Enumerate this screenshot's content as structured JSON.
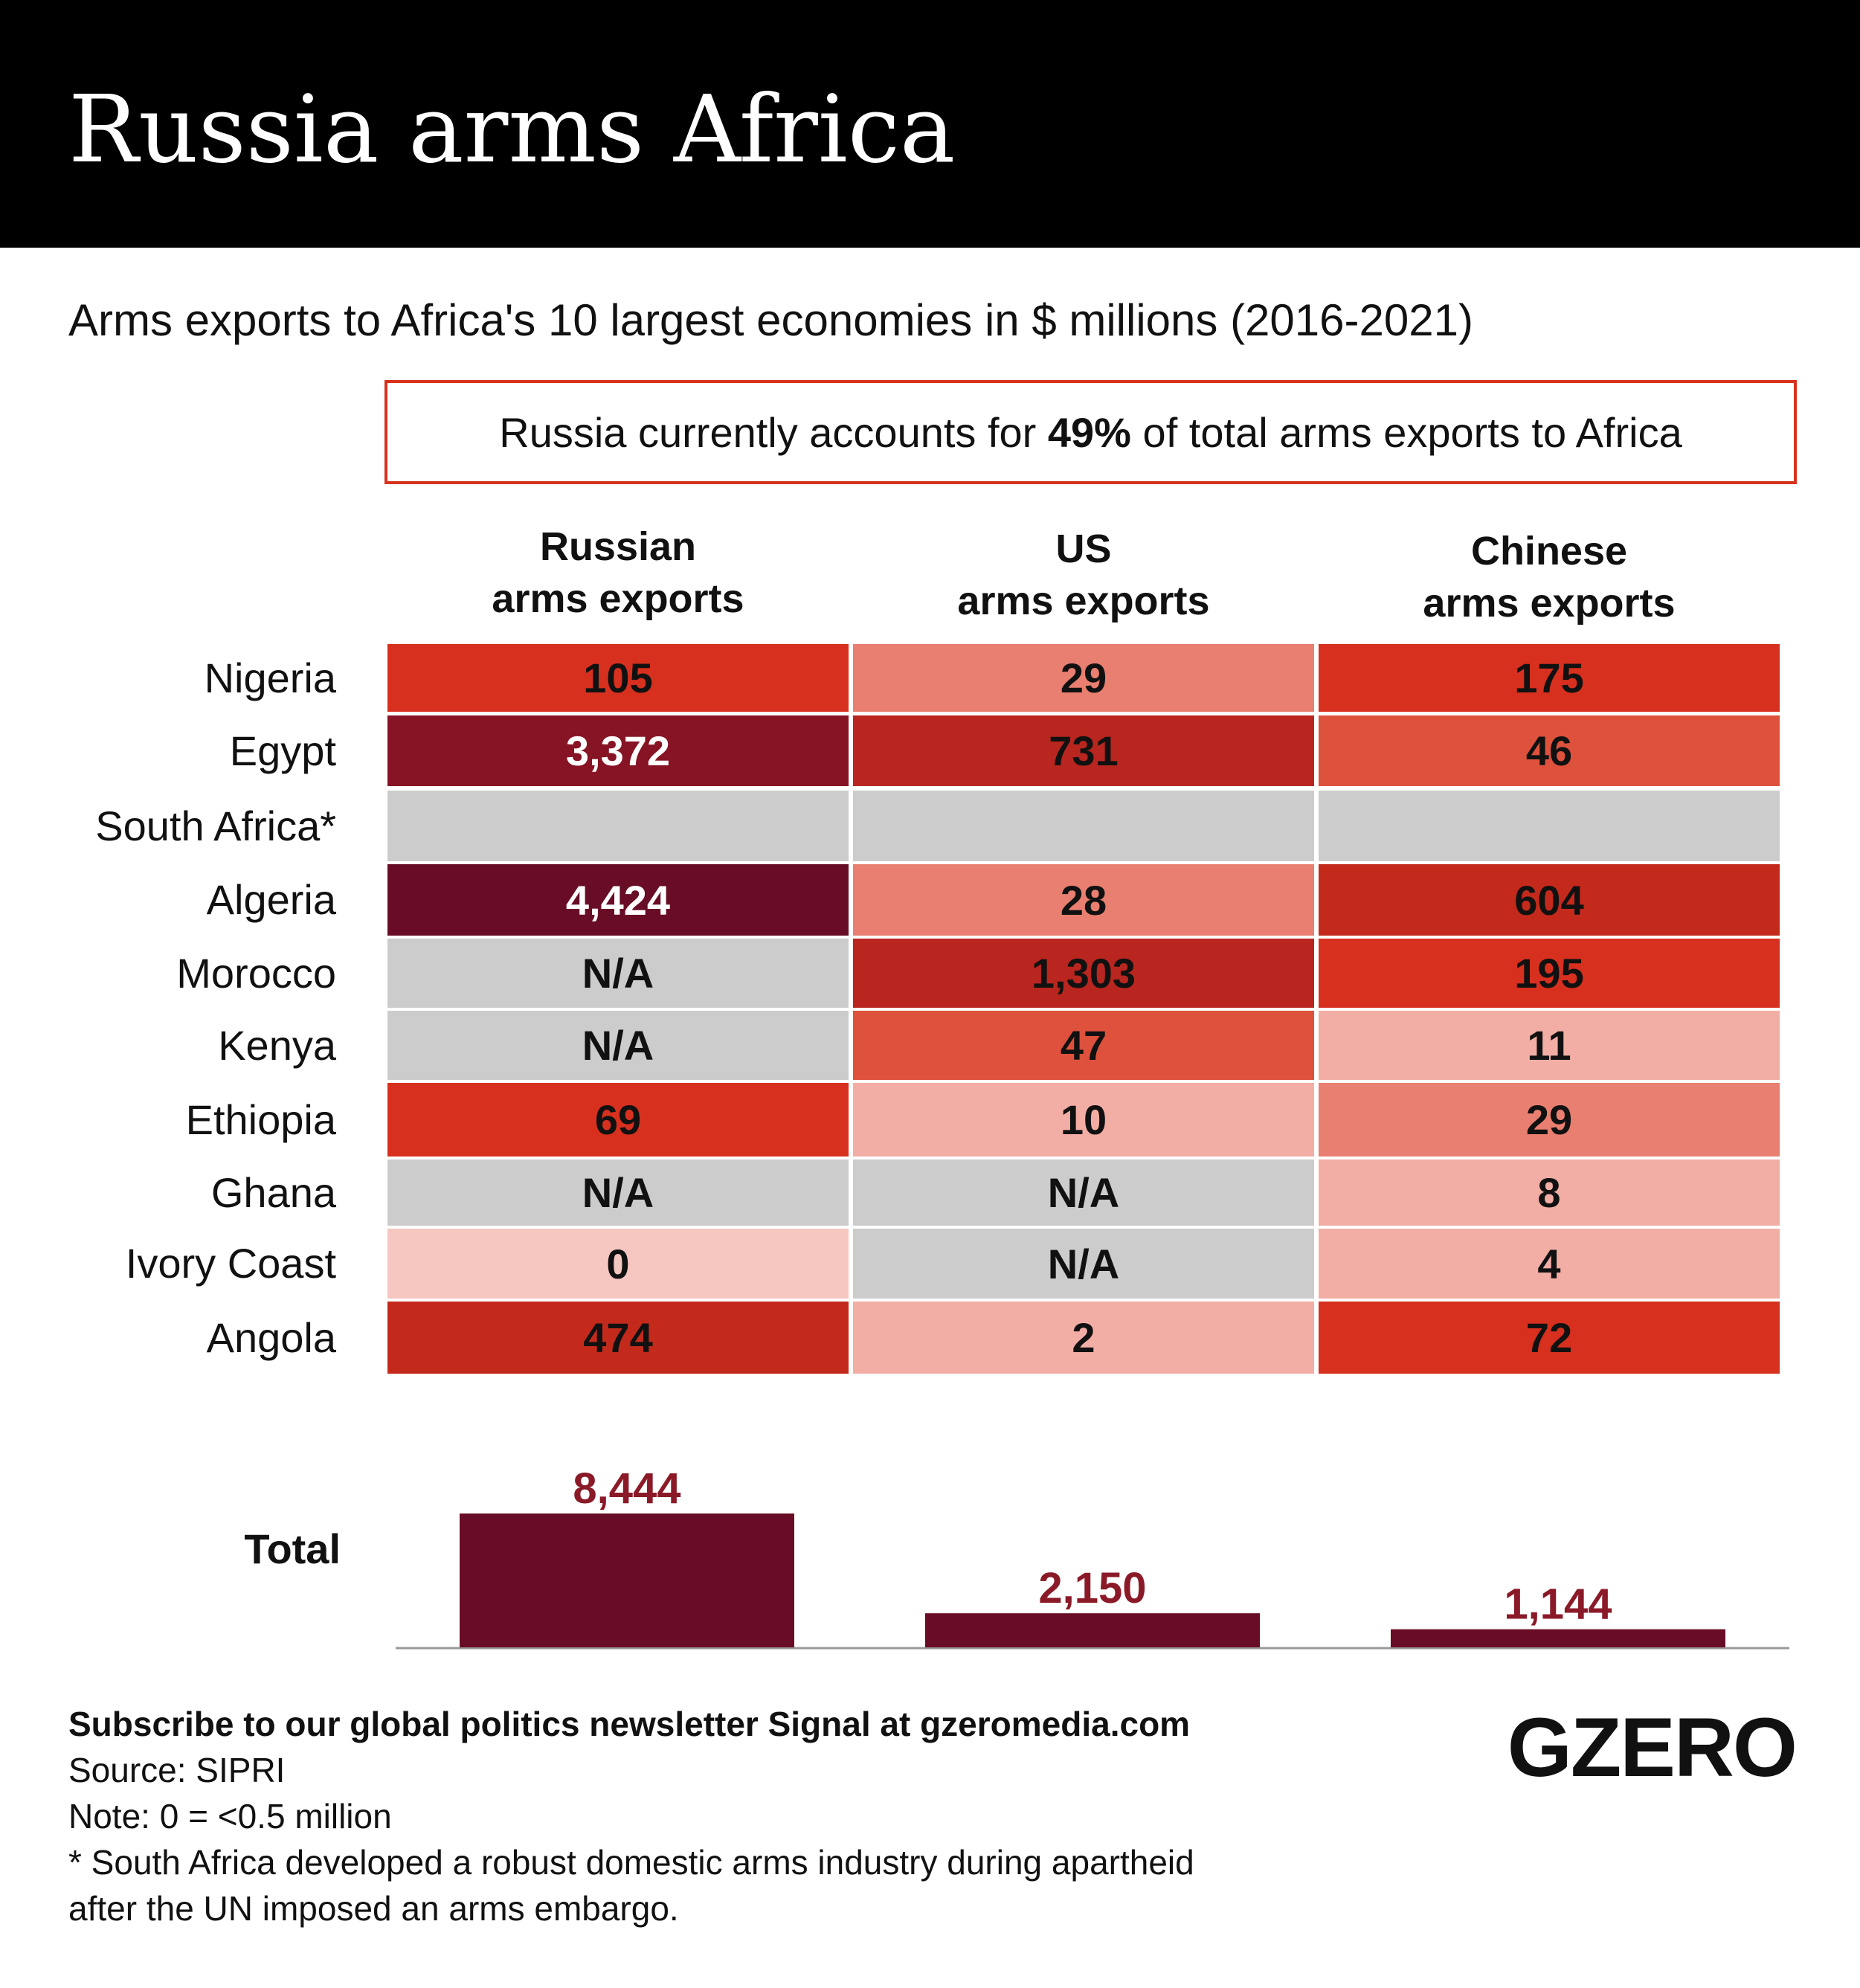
{
  "title": "Russia arms Africa",
  "subtitle": "Arms exports to Africa's 10 largest economies in $ millions (2016-2021)",
  "callout": {
    "before": "Russia currently accounts for ",
    "highlight": "49%",
    "after": " of total arms exports to Africa"
  },
  "chart_data": [
    {
      "type": "heatmap",
      "columns": [
        {
          "line1": "Russian",
          "line2": "arms exports"
        },
        {
          "line1": "US",
          "line2": "arms exports"
        },
        {
          "line1": "Chinese",
          "line2": "arms exports"
        }
      ],
      "rows": [
        {
          "country": "Nigeria",
          "values": [
            "105",
            "29",
            "175"
          ]
        },
        {
          "country": "Egypt",
          "values": [
            "3,372",
            "731",
            "46"
          ]
        },
        {
          "country": "South Africa*",
          "values": [
            "",
            "",
            ""
          ]
        },
        {
          "country": "Algeria",
          "values": [
            "4,424",
            "28",
            "604"
          ]
        },
        {
          "country": "Morocco",
          "values": [
            "N/A",
            "1,303",
            "195"
          ]
        },
        {
          "country": "Kenya",
          "values": [
            "N/A",
            "47",
            "11"
          ]
        },
        {
          "country": "Ethiopia",
          "values": [
            "69",
            "10",
            "29"
          ]
        },
        {
          "country": "Ghana",
          "values": [
            "N/A",
            "N/A",
            "8"
          ]
        },
        {
          "country": "Ivory Coast",
          "values": [
            "0",
            "N/A",
            "4"
          ]
        },
        {
          "country": "Angola",
          "values": [
            "474",
            "2",
            "72"
          ]
        }
      ],
      "colors": {
        "na": "#cccccc",
        "scale": [
          "#f6c6c1",
          "#f2aea5",
          "#e87f70",
          "#de513c",
          "#d7301e",
          "#c42a1c",
          "#b8261f",
          "#861424",
          "#680d25"
        ]
      }
    },
    {
      "type": "bar",
      "label": "Total",
      "categories": [
        "Russian",
        "US",
        "Chinese"
      ],
      "values": [
        8444,
        2150,
        1144
      ],
      "value_labels": [
        "8,444",
        "2,150",
        "1,144"
      ],
      "bar_color": "#680d25",
      "label_color": "#8b1a28"
    }
  ],
  "footer": {
    "subscribe": "Subscribe to our global politics newsletter Signal at gzeromedia.com",
    "source": "Source: SIPRI",
    "note": "Note: 0 = <0.5 million",
    "footnote_line1": "* South Africa developed a robust domestic arms industry during apartheid",
    "footnote_line2": "after the UN imposed an arms embargo."
  },
  "logo": "GZERO"
}
